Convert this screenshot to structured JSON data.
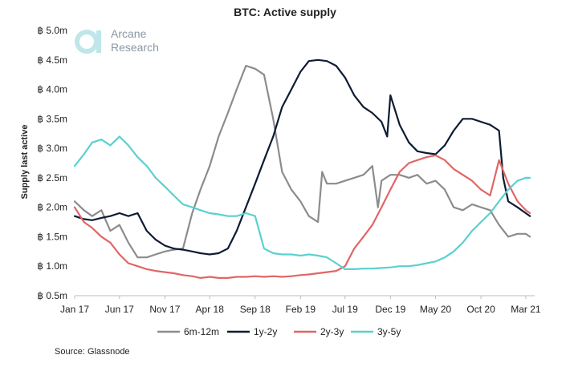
{
  "chart_data": {
    "type": "line",
    "title": "BTC: Active supply",
    "ylabel": "Supply last active",
    "ylim": [
      0.5,
      5.0
    ],
    "yticks": [
      "฿ 0.5m",
      "฿ 1.0m",
      "฿ 1.5m",
      "฿ 2.0m",
      "฿ 2.5m",
      "฿ 3.0m",
      "฿ 3.5m",
      "฿ 4.0m",
      "฿ 4.5m",
      "฿ 5.0m"
    ],
    "ytick_values": [
      0.5,
      1.0,
      1.5,
      2.0,
      2.5,
      3.0,
      3.5,
      4.0,
      4.5,
      5.0
    ],
    "xlim": [
      "2017-01-01",
      "2021-03-31"
    ],
    "xticks": [
      {
        "label": "Jan 17",
        "date": "2017-01-01"
      },
      {
        "label": "Jun 17",
        "date": "2017-06-01"
      },
      {
        "label": "Nov 17",
        "date": "2017-11-01"
      },
      {
        "label": "Apr 18",
        "date": "2018-04-01"
      },
      {
        "label": "Sep 18",
        "date": "2018-09-01"
      },
      {
        "label": "Feb 19",
        "date": "2019-02-01"
      },
      {
        "label": "Jul 19",
        "date": "2019-07-01"
      },
      {
        "label": "Dec 19",
        "date": "2019-12-01"
      },
      {
        "label": "May 20",
        "date": "2020-05-01"
      },
      {
        "label": "Oct 20",
        "date": "2020-10-01"
      },
      {
        "label": "Mar 21",
        "date": "2021-03-01"
      }
    ],
    "grid": false,
    "legend_position": "bottom",
    "series": [
      {
        "name": "6m-12m",
        "color": "#8c8c8c",
        "points": [
          [
            "2017-01-01",
            2.1
          ],
          [
            "2017-02-01",
            1.95
          ],
          [
            "2017-03-01",
            1.85
          ],
          [
            "2017-04-01",
            1.95
          ],
          [
            "2017-05-01",
            1.6
          ],
          [
            "2017-06-01",
            1.7
          ],
          [
            "2017-07-01",
            1.4
          ],
          [
            "2017-08-01",
            1.15
          ],
          [
            "2017-09-01",
            1.15
          ],
          [
            "2017-10-01",
            1.2
          ],
          [
            "2017-11-01",
            1.25
          ],
          [
            "2017-12-01",
            1.28
          ],
          [
            "2018-01-01",
            1.3
          ],
          [
            "2018-02-01",
            1.9
          ],
          [
            "2018-03-01",
            2.3
          ],
          [
            "2018-04-01",
            2.7
          ],
          [
            "2018-05-01",
            3.2
          ],
          [
            "2018-06-01",
            3.6
          ],
          [
            "2018-07-01",
            4.0
          ],
          [
            "2018-08-01",
            4.4
          ],
          [
            "2018-09-01",
            4.35
          ],
          [
            "2018-10-01",
            4.25
          ],
          [
            "2018-11-01",
            3.5
          ],
          [
            "2018-12-01",
            2.6
          ],
          [
            "2019-01-01",
            2.3
          ],
          [
            "2019-02-01",
            2.1
          ],
          [
            "2019-03-01",
            1.85
          ],
          [
            "2019-04-01",
            1.75
          ],
          [
            "2019-04-15",
            2.6
          ],
          [
            "2019-05-01",
            2.4
          ],
          [
            "2019-06-01",
            2.4
          ],
          [
            "2019-07-01",
            2.45
          ],
          [
            "2019-08-01",
            2.5
          ],
          [
            "2019-09-01",
            2.55
          ],
          [
            "2019-10-01",
            2.7
          ],
          [
            "2019-10-20",
            2.0
          ],
          [
            "2019-11-01",
            2.45
          ],
          [
            "2019-12-01",
            2.55
          ],
          [
            "2020-01-01",
            2.55
          ],
          [
            "2020-02-01",
            2.5
          ],
          [
            "2020-03-01",
            2.55
          ],
          [
            "2020-04-01",
            2.4
          ],
          [
            "2020-05-01",
            2.45
          ],
          [
            "2020-06-01",
            2.3
          ],
          [
            "2020-07-01",
            2.0
          ],
          [
            "2020-08-01",
            1.95
          ],
          [
            "2020-09-01",
            2.05
          ],
          [
            "2020-10-01",
            2.0
          ],
          [
            "2020-11-01",
            1.95
          ],
          [
            "2020-12-01",
            1.7
          ],
          [
            "2021-01-01",
            1.5
          ],
          [
            "2021-02-01",
            1.55
          ],
          [
            "2021-03-01",
            1.55
          ],
          [
            "2021-03-15",
            1.5
          ]
        ]
      },
      {
        "name": "1y-2y",
        "color": "#0d1b33",
        "points": [
          [
            "2017-01-01",
            1.85
          ],
          [
            "2017-02-01",
            1.8
          ],
          [
            "2017-03-01",
            1.78
          ],
          [
            "2017-04-01",
            1.82
          ],
          [
            "2017-05-01",
            1.85
          ],
          [
            "2017-06-01",
            1.9
          ],
          [
            "2017-07-01",
            1.85
          ],
          [
            "2017-08-01",
            1.9
          ],
          [
            "2017-09-01",
            1.6
          ],
          [
            "2017-10-01",
            1.45
          ],
          [
            "2017-11-01",
            1.35
          ],
          [
            "2017-12-01",
            1.3
          ],
          [
            "2018-01-01",
            1.28
          ],
          [
            "2018-02-01",
            1.25
          ],
          [
            "2018-03-01",
            1.22
          ],
          [
            "2018-04-01",
            1.2
          ],
          [
            "2018-05-01",
            1.22
          ],
          [
            "2018-06-01",
            1.3
          ],
          [
            "2018-07-01",
            1.6
          ],
          [
            "2018-08-01",
            2.0
          ],
          [
            "2018-09-01",
            2.4
          ],
          [
            "2018-10-01",
            2.8
          ],
          [
            "2018-11-01",
            3.2
          ],
          [
            "2018-12-01",
            3.7
          ],
          [
            "2019-01-01",
            4.0
          ],
          [
            "2019-02-01",
            4.3
          ],
          [
            "2019-03-01",
            4.48
          ],
          [
            "2019-04-01",
            4.5
          ],
          [
            "2019-05-01",
            4.48
          ],
          [
            "2019-06-01",
            4.4
          ],
          [
            "2019-07-01",
            4.2
          ],
          [
            "2019-08-01",
            3.9
          ],
          [
            "2019-09-01",
            3.7
          ],
          [
            "2019-10-01",
            3.6
          ],
          [
            "2019-11-01",
            3.45
          ],
          [
            "2019-11-20",
            3.2
          ],
          [
            "2019-12-01",
            3.9
          ],
          [
            "2020-01-01",
            3.4
          ],
          [
            "2020-02-01",
            3.1
          ],
          [
            "2020-03-01",
            2.95
          ],
          [
            "2020-04-01",
            2.92
          ],
          [
            "2020-05-01",
            2.9
          ],
          [
            "2020-06-01",
            3.05
          ],
          [
            "2020-07-01",
            3.3
          ],
          [
            "2020-08-01",
            3.5
          ],
          [
            "2020-09-01",
            3.5
          ],
          [
            "2020-10-01",
            3.45
          ],
          [
            "2020-11-01",
            3.4
          ],
          [
            "2020-12-01",
            3.3
          ],
          [
            "2020-12-15",
            2.5
          ],
          [
            "2021-01-01",
            2.1
          ],
          [
            "2021-02-01",
            2.0
          ],
          [
            "2021-03-01",
            1.9
          ],
          [
            "2021-03-15",
            1.85
          ]
        ]
      },
      {
        "name": "2y-3y",
        "color": "#e06666",
        "points": [
          [
            "2017-01-01",
            2.0
          ],
          [
            "2017-02-01",
            1.75
          ],
          [
            "2017-03-01",
            1.65
          ],
          [
            "2017-04-01",
            1.5
          ],
          [
            "2017-05-01",
            1.4
          ],
          [
            "2017-06-01",
            1.2
          ],
          [
            "2017-07-01",
            1.05
          ],
          [
            "2017-08-01",
            1.0
          ],
          [
            "2017-09-01",
            0.95
          ],
          [
            "2017-10-01",
            0.92
          ],
          [
            "2017-11-01",
            0.9
          ],
          [
            "2017-12-01",
            0.88
          ],
          [
            "2018-01-01",
            0.85
          ],
          [
            "2018-02-01",
            0.83
          ],
          [
            "2018-03-01",
            0.8
          ],
          [
            "2018-04-01",
            0.82
          ],
          [
            "2018-05-01",
            0.8
          ],
          [
            "2018-06-01",
            0.8
          ],
          [
            "2018-07-01",
            0.82
          ],
          [
            "2018-08-01",
            0.82
          ],
          [
            "2018-09-01",
            0.83
          ],
          [
            "2018-10-01",
            0.82
          ],
          [
            "2018-11-01",
            0.83
          ],
          [
            "2018-12-01",
            0.82
          ],
          [
            "2019-01-01",
            0.83
          ],
          [
            "2019-02-01",
            0.85
          ],
          [
            "2019-03-01",
            0.86
          ],
          [
            "2019-04-01",
            0.88
          ],
          [
            "2019-05-01",
            0.9
          ],
          [
            "2019-06-01",
            0.92
          ],
          [
            "2019-07-01",
            1.0
          ],
          [
            "2019-08-01",
            1.3
          ],
          [
            "2019-09-01",
            1.5
          ],
          [
            "2019-10-01",
            1.7
          ],
          [
            "2019-11-01",
            2.0
          ],
          [
            "2019-12-01",
            2.3
          ],
          [
            "2020-01-01",
            2.6
          ],
          [
            "2020-02-01",
            2.75
          ],
          [
            "2020-03-01",
            2.8
          ],
          [
            "2020-04-01",
            2.85
          ],
          [
            "2020-05-01",
            2.88
          ],
          [
            "2020-06-01",
            2.8
          ],
          [
            "2020-07-01",
            2.65
          ],
          [
            "2020-08-01",
            2.55
          ],
          [
            "2020-09-01",
            2.45
          ],
          [
            "2020-10-01",
            2.3
          ],
          [
            "2020-11-01",
            2.2
          ],
          [
            "2020-12-01",
            2.8
          ],
          [
            "2021-01-01",
            2.4
          ],
          [
            "2021-02-01",
            2.1
          ],
          [
            "2021-03-01",
            1.95
          ],
          [
            "2021-03-15",
            1.9
          ]
        ]
      },
      {
        "name": "3y-5y",
        "color": "#5bd0d0",
        "points": [
          [
            "2017-01-01",
            2.7
          ],
          [
            "2017-02-01",
            2.9
          ],
          [
            "2017-03-01",
            3.1
          ],
          [
            "2017-04-01",
            3.15
          ],
          [
            "2017-05-01",
            3.05
          ],
          [
            "2017-06-01",
            3.2
          ],
          [
            "2017-07-01",
            3.05
          ],
          [
            "2017-08-01",
            2.85
          ],
          [
            "2017-09-01",
            2.7
          ],
          [
            "2017-10-01",
            2.5
          ],
          [
            "2017-11-01",
            2.35
          ],
          [
            "2017-12-01",
            2.2
          ],
          [
            "2018-01-01",
            2.05
          ],
          [
            "2018-02-01",
            2.0
          ],
          [
            "2018-03-01",
            1.95
          ],
          [
            "2018-04-01",
            1.9
          ],
          [
            "2018-05-01",
            1.88
          ],
          [
            "2018-06-01",
            1.85
          ],
          [
            "2018-07-01",
            1.85
          ],
          [
            "2018-08-01",
            1.9
          ],
          [
            "2018-09-01",
            1.85
          ],
          [
            "2018-10-01",
            1.3
          ],
          [
            "2018-11-01",
            1.22
          ],
          [
            "2018-12-01",
            1.2
          ],
          [
            "2019-01-01",
            1.2
          ],
          [
            "2019-02-01",
            1.18
          ],
          [
            "2019-03-01",
            1.2
          ],
          [
            "2019-04-01",
            1.18
          ],
          [
            "2019-05-01",
            1.15
          ],
          [
            "2019-06-01",
            1.05
          ],
          [
            "2019-07-01",
            0.95
          ],
          [
            "2019-08-01",
            0.95
          ],
          [
            "2019-09-01",
            0.96
          ],
          [
            "2019-10-01",
            0.96
          ],
          [
            "2019-11-01",
            0.97
          ],
          [
            "2019-12-01",
            0.98
          ],
          [
            "2020-01-01",
            1.0
          ],
          [
            "2020-02-01",
            1.0
          ],
          [
            "2020-03-01",
            1.02
          ],
          [
            "2020-04-01",
            1.05
          ],
          [
            "2020-05-01",
            1.08
          ],
          [
            "2020-06-01",
            1.15
          ],
          [
            "2020-07-01",
            1.25
          ],
          [
            "2020-08-01",
            1.4
          ],
          [
            "2020-09-01",
            1.6
          ],
          [
            "2020-10-01",
            1.75
          ],
          [
            "2020-11-01",
            1.9
          ],
          [
            "2020-12-01",
            2.1
          ],
          [
            "2021-01-01",
            2.3
          ],
          [
            "2021-02-01",
            2.45
          ],
          [
            "2021-03-01",
            2.5
          ],
          [
            "2021-03-15",
            2.5
          ]
        ]
      }
    ]
  },
  "logo": {
    "line1": "Arcane",
    "line2": "Research",
    "color": "#8a96a3",
    "mark_color": "#5bd0d0"
  },
  "source": "Source: Glassnode"
}
